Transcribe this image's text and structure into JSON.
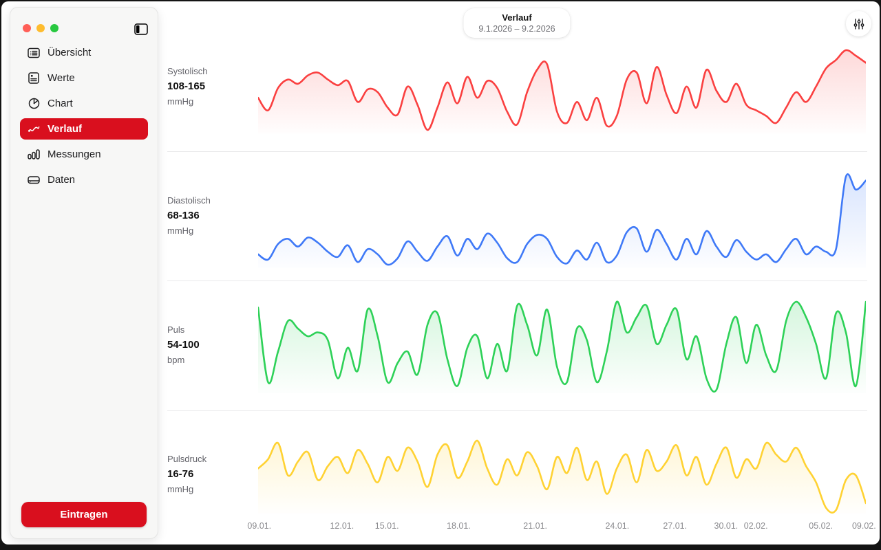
{
  "colors": {
    "accent_red": "#d90f1e",
    "traffic_red": "#ff5f57",
    "traffic_yellow": "#febc2e",
    "traffic_green": "#28c840"
  },
  "sidebar": {
    "items": [
      {
        "label": "Übersicht",
        "icon": "overview-icon",
        "selected": false
      },
      {
        "label": "Werte",
        "icon": "values-icon",
        "selected": false
      },
      {
        "label": "Chart",
        "icon": "pie-chart-icon",
        "selected": false
      },
      {
        "label": "Verlauf",
        "icon": "line-chart-icon",
        "selected": true
      },
      {
        "label": "Messungen",
        "icon": "bars-icon",
        "selected": false
      },
      {
        "label": "Daten",
        "icon": "drive-icon",
        "selected": false
      }
    ],
    "action_button_label": "Eintragen"
  },
  "header": {
    "title": "Verlauf",
    "date_range": "9.1.2026 – 9.2.2026"
  },
  "chart_data": {
    "type": "line",
    "title": "Verlauf",
    "x_range_label": "9.1.2026 – 9.2.2026",
    "grid": false,
    "legend": "left-labels",
    "x_tick_labels": [
      "09.01.",
      "12.01.",
      "15.01.",
      "18.01.",
      "21.01.",
      "24.01.",
      "27.01.",
      "30.01.",
      "02.02.",
      "05.02.",
      "09.02."
    ],
    "x_tick_positions": [
      0.002,
      0.138,
      0.212,
      0.33,
      0.456,
      0.591,
      0.686,
      0.77,
      0.819,
      0.926,
      0.997
    ],
    "series": [
      {
        "name": "Systolisch",
        "range_label": "108-165",
        "unit": "mmHg",
        "min": 108,
        "max": 165,
        "color": "#fa4040",
        "values": [
          131,
          122,
          138,
          144,
          141,
          147,
          149,
          144,
          140,
          143,
          128,
          137,
          135,
          124,
          119,
          139,
          126,
          108,
          124,
          142,
          127,
          146,
          131,
          143,
          138,
          121,
          112,
          135,
          151,
          155,
          121,
          113,
          128,
          115,
          131,
          111,
          118,
          144,
          149,
          127,
          153,
          133,
          120,
          139,
          124,
          151,
          136,
          128,
          141,
          126,
          122,
          118,
          113,
          124,
          135,
          128,
          139,
          152,
          158,
          165,
          161,
          156
        ]
      },
      {
        "name": "Diastolisch",
        "range_label": "68-136",
        "unit": "mmHg",
        "min": 68,
        "max": 136,
        "color": "#3f79f7",
        "values": [
          76,
          72,
          84,
          88,
          82,
          89,
          85,
          78,
          74,
          83,
          70,
          80,
          76,
          68,
          73,
          86,
          78,
          71,
          82,
          90,
          75,
          88,
          80,
          92,
          85,
          73,
          70,
          84,
          91,
          88,
          74,
          69,
          79,
          72,
          85,
          70,
          75,
          93,
          96,
          78,
          95,
          84,
          72,
          88,
          76,
          94,
          82,
          74,
          87,
          78,
          72,
          76,
          70,
          80,
          88,
          76,
          82,
          78,
          80,
          136,
          126,
          133
        ]
      },
      {
        "name": "Puls",
        "range_label": "54-100",
        "unit": "bpm",
        "min": 54,
        "max": 100,
        "color": "#2ed158",
        "values": [
          97,
          58,
          74,
          90,
          86,
          82,
          84,
          80,
          60,
          76,
          64,
          96,
          82,
          58,
          68,
          74,
          62,
          88,
          94,
          70,
          56,
          76,
          82,
          60,
          78,
          64,
          98,
          88,
          72,
          96,
          66,
          58,
          86,
          80,
          58,
          74,
          100,
          84,
          92,
          98,
          78,
          88,
          96,
          70,
          82,
          60,
          54,
          78,
          92,
          68,
          88,
          72,
          64,
          90,
          100,
          92,
          78,
          60,
          94,
          84,
          56,
          100
        ]
      },
      {
        "name": "Pulsdruck",
        "range_label": "16-76",
        "unit": "mmHg",
        "min": 16,
        "max": 76,
        "color": "#ffd233",
        "values": [
          52,
          60,
          74,
          46,
          58,
          66,
          42,
          54,
          62,
          48,
          68,
          56,
          40,
          62,
          50,
          70,
          58,
          36,
          64,
          72,
          44,
          58,
          76,
          52,
          38,
          60,
          46,
          66,
          54,
          34,
          62,
          48,
          70,
          42,
          58,
          30,
          52,
          64,
          40,
          68,
          50,
          58,
          72,
          46,
          62,
          38,
          56,
          70,
          44,
          60,
          52,
          74,
          64,
          58,
          70,
          54,
          40,
          18,
          16,
          42,
          46,
          22
        ]
      }
    ]
  }
}
